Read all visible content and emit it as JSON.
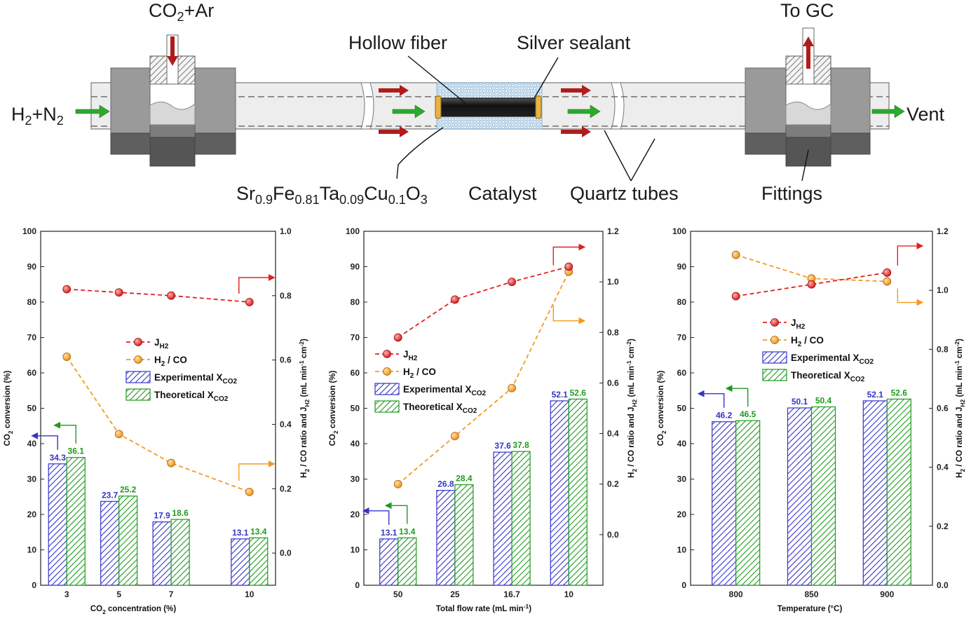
{
  "colors": {
    "experimental": "#3535c8",
    "theoretical": "#1f9a1f",
    "jh2": "#e02020",
    "h2co": "#f39a1f",
    "fitting": "#8c8c8c",
    "tube": "#ececec"
  },
  "diagram": {
    "labels": {
      "inlet_left": "H2+N2",
      "inlet_top": "CO2+Ar",
      "outlet_top": "To GC",
      "outlet_right": "Vent",
      "hollow_fiber": "Hollow fiber",
      "silver_sealant": "Silver sealant",
      "catalyst_formula": "Sr0.9Fe0.81Ta0.09Cu0.1O3",
      "catalyst_word": "Catalyst",
      "quartz_tubes": "Quartz tubes",
      "fittings": "Fittings"
    },
    "legend_texts": {
      "jh2": "J",
      "jh2_sub": "H2",
      "h2co": "H2 / CO",
      "experimental": "Experimental X",
      "theoretical": "Theoretical X",
      "xsub": "CO2"
    }
  },
  "chart_data": [
    {
      "type": "bar",
      "categories": [
        "3",
        "5",
        "7",
        "10"
      ],
      "x_positions": [
        3,
        5,
        7,
        10
      ],
      "xlim": [
        2,
        11
      ],
      "xlabel": "CO2 concentration (%)",
      "ylabel": "CO2 conversion (%)",
      "y2label": "H2 / CO ratio and JH2 (mL min-1 cm-2)",
      "ylim": [
        0,
        100
      ],
      "yticks": [
        0,
        10,
        20,
        30,
        40,
        50,
        60,
        70,
        80,
        90,
        100
      ],
      "y2lim": [
        -0.1,
        1.0
      ],
      "y2ticks": [
        0.0,
        0.2,
        0.4,
        0.6,
        0.8,
        1.0
      ],
      "y2ticklabels": [
        "0.0",
        "0.2",
        "0.4",
        "0.6",
        "0.8",
        "1.0"
      ],
      "series": [
        {
          "name": "Experimental XCO2",
          "kind": "bar",
          "values": [
            34.3,
            23.7,
            17.9,
            13.1
          ],
          "labels": [
            "34.3",
            "23.7",
            "17.9",
            "13.1"
          ]
        },
        {
          "name": "Theoretical XCO2",
          "kind": "bar",
          "values": [
            36.1,
            25.2,
            18.6,
            13.4
          ],
          "labels": [
            "36.1",
            "25.2",
            "18.6",
            "13.4"
          ]
        },
        {
          "name": "JH2",
          "kind": "line",
          "axis": "right",
          "values": [
            0.82,
            0.81,
            0.8,
            0.78
          ]
        },
        {
          "name": "H2 / CO",
          "kind": "line",
          "axis": "right",
          "values": [
            0.61,
            0.37,
            0.28,
            0.19
          ]
        }
      ],
      "legend": "center-right",
      "grid": false
    },
    {
      "type": "bar",
      "categories": [
        "50",
        "25",
        "16.7",
        "10"
      ],
      "x_positions": [
        1,
        2,
        3,
        4
      ],
      "xlim": [
        0.4,
        4.6
      ],
      "xlabel": "Total flow rate (mL min-1)",
      "ylabel": "CO2 conversion (%)",
      "y2label": "H2 / CO ratio and JH2 (mL min-1 cm-2)",
      "ylim": [
        0,
        100
      ],
      "yticks": [
        0,
        10,
        20,
        30,
        40,
        50,
        60,
        70,
        80,
        90,
        100
      ],
      "y2lim": [
        -0.2,
        1.2
      ],
      "y2ticks": [
        0.0,
        0.2,
        0.4,
        0.6,
        0.8,
        1.0,
        1.2
      ],
      "y2ticklabels": [
        "0.0",
        "0.2",
        "0.4",
        "0.6",
        "0.8",
        "1.0",
        "1.2"
      ],
      "series": [
        {
          "name": "Experimental XCO2",
          "kind": "bar",
          "values": [
            13.1,
            26.8,
            37.6,
            52.1
          ],
          "labels": [
            "13.1",
            "26.8",
            "37.6",
            "52.1"
          ]
        },
        {
          "name": "Theoretical XCO2",
          "kind": "bar",
          "values": [
            13.4,
            28.4,
            37.8,
            52.6
          ],
          "labels": [
            "13.4",
            "28.4",
            "37.8",
            "52.6"
          ]
        },
        {
          "name": "JH2",
          "kind": "line",
          "axis": "right",
          "values": [
            0.78,
            0.93,
            1.0,
            1.06
          ]
        },
        {
          "name": "H2 / CO",
          "kind": "line",
          "axis": "right",
          "values": [
            0.2,
            0.39,
            0.58,
            1.04
          ]
        }
      ],
      "legend": "center-left",
      "grid": false
    },
    {
      "type": "bar",
      "categories": [
        "800",
        "850",
        "900"
      ],
      "x_positions": [
        800,
        850,
        900
      ],
      "xlim": [
        770,
        930
      ],
      "xlabel": "Temperature (°C)",
      "ylabel": "CO2 conversion (%)",
      "y2label": "H2 / CO ratio and JH2 (mL min-1 cm-2)",
      "ylim": [
        0,
        100
      ],
      "yticks": [
        0,
        10,
        20,
        30,
        40,
        50,
        60,
        70,
        80,
        90,
        100
      ],
      "y2lim": [
        0.0,
        1.2
      ],
      "y2ticks": [
        0.0,
        0.2,
        0.4,
        0.6,
        0.8,
        1.0,
        1.2
      ],
      "y2ticklabels": [
        "0.0",
        "0.2",
        "0.4",
        "0.6",
        "0.8",
        "1.0",
        "1.2"
      ],
      "series": [
        {
          "name": "Experimental XCO2",
          "kind": "bar",
          "values": [
            46.2,
            50.1,
            52.1
          ],
          "labels": [
            "46.2",
            "50.1",
            "52.1"
          ]
        },
        {
          "name": "Theoretical XCO2",
          "kind": "bar",
          "values": [
            46.5,
            50.4,
            52.6
          ],
          "labels": [
            "46.5",
            "50.4",
            "52.6"
          ]
        },
        {
          "name": "JH2",
          "kind": "line",
          "axis": "right",
          "values": [
            0.98,
            1.02,
            1.06
          ]
        },
        {
          "name": "H2 / CO",
          "kind": "line",
          "axis": "right",
          "values": [
            1.12,
            1.04,
            1.03
          ]
        }
      ],
      "legend": "center",
      "grid": false
    }
  ]
}
